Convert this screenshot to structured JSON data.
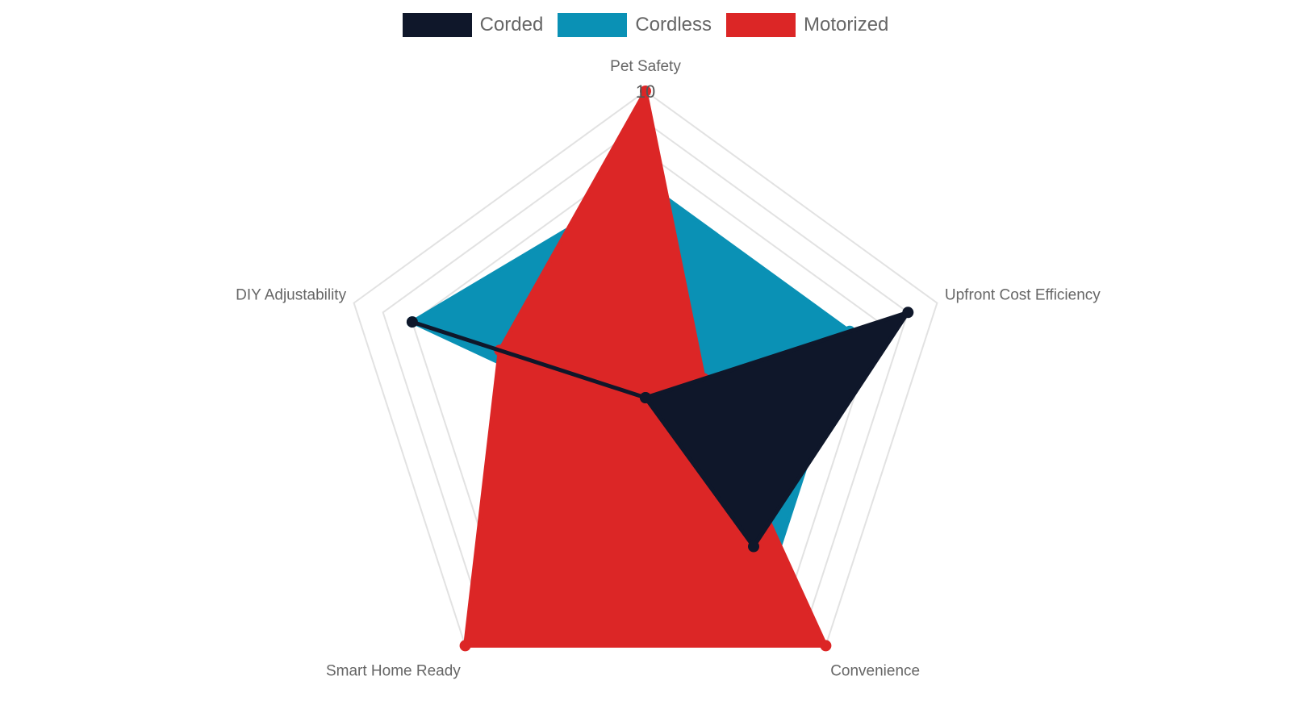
{
  "chart_data": {
    "type": "radar",
    "axes": [
      "Pet Safety",
      "Upfront Cost Efficiency",
      "Convenience",
      "Smart Home Ready",
      "DIY Adjustability"
    ],
    "rmin": 0,
    "rmax": 10,
    "tick_labels": [
      "10"
    ],
    "grid": true,
    "legend_position": "top",
    "series": [
      {
        "name": "Cordless",
        "values": [
          7,
          7,
          7,
          1,
          8
        ],
        "color": "#0a91b5",
        "filled": true
      },
      {
        "name": "Motorized",
        "values": [
          10,
          2,
          10,
          10,
          5
        ],
        "color": "#dc2626",
        "filled": true
      },
      {
        "name": "Corded",
        "values": [
          0,
          9,
          6,
          0,
          8
        ],
        "color": "#0f172a",
        "filled": true
      }
    ],
    "legend": [
      {
        "name": "Corded",
        "color": "#0f172a"
      },
      {
        "name": "Cordless",
        "color": "#0a91b5"
      },
      {
        "name": "Motorized",
        "color": "#dc2626"
      }
    ]
  }
}
